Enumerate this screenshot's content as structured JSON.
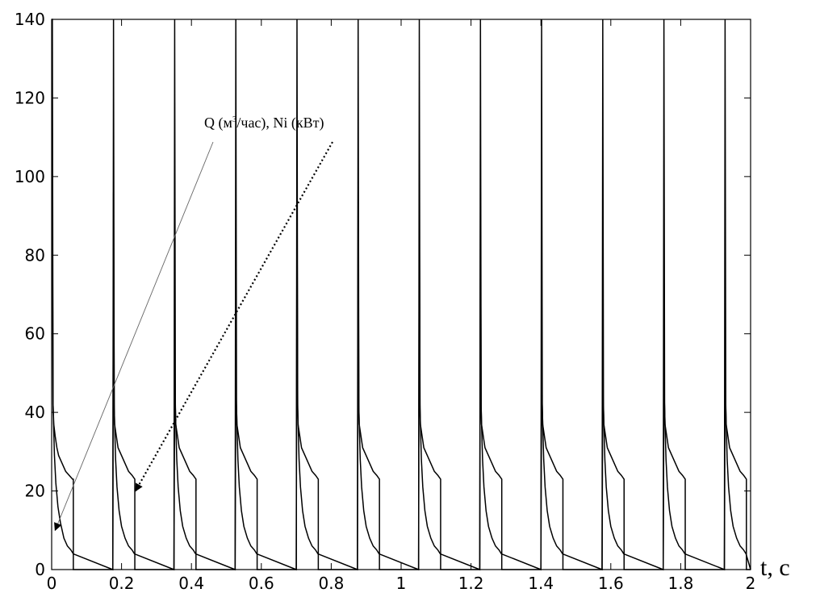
{
  "chart_data": {
    "type": "line",
    "title": "",
    "xlabel": "t, c",
    "ylabel": "",
    "xlim": [
      0,
      2
    ],
    "ylim": [
      0,
      140
    ],
    "x_ticks": [
      0,
      0.2,
      0.4,
      0.6,
      0.8,
      1,
      1.2,
      1.4,
      1.6,
      1.8,
      2
    ],
    "x_tick_labels": [
      "0",
      "0.2",
      "0.4",
      "0.6",
      "0.8",
      "1",
      "1.2",
      "1.4",
      "1.6",
      "1.8",
      "2"
    ],
    "y_ticks": [
      0,
      20,
      40,
      60,
      80,
      100,
      120,
      140
    ],
    "y_tick_labels": [
      "0",
      "20",
      "40",
      "60",
      "80",
      "100",
      "120",
      "140"
    ],
    "grid": false,
    "legend": "none",
    "line_color": "#000000",
    "series": [
      {
        "x": [
          0,
          0.002,
          0.004,
          0.006,
          0.01,
          0.015,
          0.02,
          0.03,
          0.04,
          0.05,
          0.06,
          0.062,
          0.062,
          0.175,
          0.177,
          0.179,
          0.18,
          0.185,
          0.19,
          0.2,
          0.21,
          0.22,
          0.23,
          0.238,
          0.238,
          0.35,
          0.352,
          0.354,
          0.355,
          0.36,
          0.365,
          0.375,
          0.385,
          0.395,
          0.405,
          0.413,
          0.413,
          0.525,
          0.527,
          0.529,
          0.53,
          0.535,
          0.54,
          0.55,
          0.56,
          0.57,
          0.58,
          0.588,
          0.588,
          0.7,
          0.702,
          0.704,
          0.705,
          0.71,
          0.715,
          0.725,
          0.735,
          0.745,
          0.755,
          0.763,
          0.763,
          0.875,
          0.877,
          0.879,
          0.88,
          0.885,
          0.89,
          0.9,
          0.91,
          0.92,
          0.93,
          0.938,
          0.938,
          1.05,
          1.052,
          1.054,
          1.055,
          1.06,
          1.065,
          1.075,
          1.085,
          1.095,
          1.105,
          1.113,
          1.113,
          1.225,
          1.227,
          1.229,
          1.23,
          1.235,
          1.24,
          1.25,
          1.26,
          1.27,
          1.28,
          1.288,
          1.288,
          1.4,
          1.402,
          1.404,
          1.405,
          1.41,
          1.415,
          1.425,
          1.435,
          1.445,
          1.455,
          1.463,
          1.463,
          1.575,
          1.577,
          1.579,
          1.58,
          1.585,
          1.59,
          1.6,
          1.61,
          1.62,
          1.63,
          1.638,
          1.638,
          1.75,
          1.752,
          1.754,
          1.755,
          1.76,
          1.765,
          1.775,
          1.785,
          1.795,
          1.805,
          1.813,
          1.813,
          1.925,
          1.927,
          1.929,
          1.93,
          1.935,
          1.94,
          1.95,
          1.96,
          1.97,
          1.98,
          1.988,
          1.988,
          2
        ],
        "y": [
          140,
          140,
          42,
          37,
          34,
          31,
          29,
          27,
          25,
          24,
          23,
          23,
          0,
          0,
          140,
          42,
          37,
          34,
          31,
          29,
          27,
          25,
          24,
          23,
          0,
          0,
          140,
          42,
          37,
          34,
          31,
          29,
          27,
          25,
          24,
          23,
          0,
          0,
          140,
          42,
          37,
          34,
          31,
          29,
          27,
          25,
          24,
          23,
          0,
          0,
          140,
          42,
          37,
          34,
          31,
          29,
          27,
          25,
          24,
          23,
          0,
          0,
          140,
          42,
          37,
          34,
          31,
          29,
          27,
          25,
          24,
          23,
          0,
          0,
          140,
          42,
          37,
          34,
          31,
          29,
          27,
          25,
          24,
          23,
          0,
          0,
          140,
          42,
          37,
          34,
          31,
          29,
          27,
          25,
          24,
          23,
          0,
          0,
          140,
          42,
          37,
          34,
          31,
          29,
          27,
          25,
          24,
          23,
          0,
          0,
          140,
          42,
          37,
          34,
          31,
          29,
          27,
          25,
          24,
          23,
          0,
          0,
          140,
          42,
          37,
          34,
          31,
          29,
          27,
          25,
          24,
          23,
          0,
          0,
          140,
          42,
          37,
          34,
          31,
          29,
          27,
          25,
          24,
          23,
          0,
          0
        ]
      },
      {
        "x": [
          0,
          0.002,
          0.004,
          0.008,
          0.012,
          0.018,
          0.025,
          0.035,
          0.045,
          0.055,
          0.062,
          0.175,
          0.177,
          0.179,
          0.183,
          0.187,
          0.193,
          0.2,
          0.21,
          0.22,
          0.23,
          0.237,
          0.35,
          0.352,
          0.354,
          0.358,
          0.362,
          0.368,
          0.375,
          0.385,
          0.395,
          0.405,
          0.412,
          0.525,
          0.527,
          0.529,
          0.533,
          0.537,
          0.543,
          0.55,
          0.56,
          0.57,
          0.58,
          0.587,
          0.7,
          0.702,
          0.704,
          0.708,
          0.712,
          0.718,
          0.725,
          0.735,
          0.745,
          0.755,
          0.762,
          0.875,
          0.877,
          0.879,
          0.883,
          0.887,
          0.893,
          0.9,
          0.91,
          0.92,
          0.93,
          0.937,
          1.05,
          1.052,
          1.054,
          1.058,
          1.062,
          1.068,
          1.075,
          1.085,
          1.095,
          1.105,
          1.112,
          1.225,
          1.227,
          1.229,
          1.233,
          1.237,
          1.243,
          1.25,
          1.26,
          1.27,
          1.28,
          1.287,
          1.4,
          1.402,
          1.404,
          1.408,
          1.412,
          1.418,
          1.425,
          1.435,
          1.445,
          1.455,
          1.462,
          1.575,
          1.577,
          1.579,
          1.583,
          1.587,
          1.593,
          1.6,
          1.61,
          1.62,
          1.63,
          1.637,
          1.75,
          1.752,
          1.754,
          1.758,
          1.762,
          1.768,
          1.775,
          1.785,
          1.795,
          1.805,
          1.812,
          1.925,
          1.927,
          1.929,
          1.933,
          1.937,
          1.943,
          1.95,
          1.96,
          1.97,
          1.98,
          1.987,
          2
        ],
        "y": [
          98,
          98,
          42,
          29,
          22,
          16,
          12,
          8,
          6,
          5,
          4,
          0,
          96,
          41,
          28,
          21,
          15,
          11,
          8,
          6,
          5,
          4,
          0,
          47,
          41,
          28,
          21,
          15,
          11,
          8,
          6,
          5,
          4,
          0,
          47,
          41,
          28,
          21,
          15,
          11,
          8,
          6,
          5,
          4,
          0,
          96,
          41,
          28,
          21,
          15,
          11,
          8,
          6,
          5,
          4,
          0,
          96,
          41,
          28,
          21,
          15,
          11,
          8,
          6,
          5,
          4,
          0,
          96,
          41,
          28,
          21,
          15,
          11,
          8,
          6,
          5,
          4,
          0,
          96,
          41,
          28,
          21,
          15,
          11,
          8,
          6,
          5,
          4,
          0,
          47,
          41,
          28,
          21,
          15,
          11,
          8,
          6,
          5,
          4,
          0,
          47,
          41,
          28,
          21,
          15,
          11,
          8,
          6,
          5,
          4,
          0,
          47,
          41,
          28,
          21,
          15,
          11,
          8,
          6,
          5,
          4,
          0,
          47,
          41,
          28,
          21,
          15,
          11,
          8,
          6,
          5,
          4,
          0
        ]
      }
    ],
    "annotation": {
      "text_parts": [
        "Q (м",
        "3",
        "/час), Ni (кВт)"
      ],
      "arrows": [
        {
          "style": "solid-thin",
          "to": [
            0.01,
            10
          ]
        },
        {
          "style": "dotted",
          "to": [
            0.24,
            20
          ]
        }
      ]
    }
  }
}
